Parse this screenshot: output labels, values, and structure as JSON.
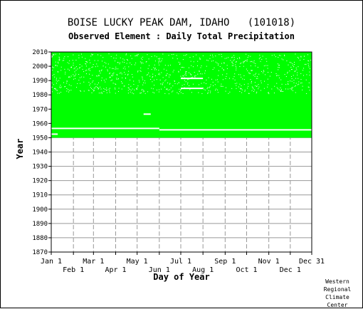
{
  "chart_data": {
    "type": "heatmap",
    "title": "BOISE LUCKY PEAK DAM, IDAHO   (101018)",
    "subtitle": "Observed Element : Daily Total Precipitation",
    "xlabel": "Day of Year",
    "ylabel": "Year",
    "y_range": [
      1870,
      2010
    ],
    "y_ticks": [
      "1870",
      "1880",
      "1890",
      "1900",
      "1910",
      "1920",
      "1930",
      "1940",
      "1950",
      "1960",
      "1970",
      "1980",
      "1990",
      "2000",
      "2010"
    ],
    "x_ticks_top": [
      "Jan 1",
      "Mar 1",
      "May 1",
      "Jul 1",
      "Sep 1",
      "Nov 1",
      "Dec 31"
    ],
    "x_ticks_bottom": [
      "Feb 1",
      "Apr 1",
      "Jun 1",
      "Aug 1",
      "Oct 1",
      "Dec 1"
    ],
    "grid": true,
    "data_present_color": "#00ff00",
    "data_present_years": [
      1950,
      2010
    ],
    "data_description": "Observations present for nearly all days from about 1950 through 2010; scattered missing days mainly after 1980"
  },
  "credit": "Western\nRegional\nClimate\nCenter"
}
